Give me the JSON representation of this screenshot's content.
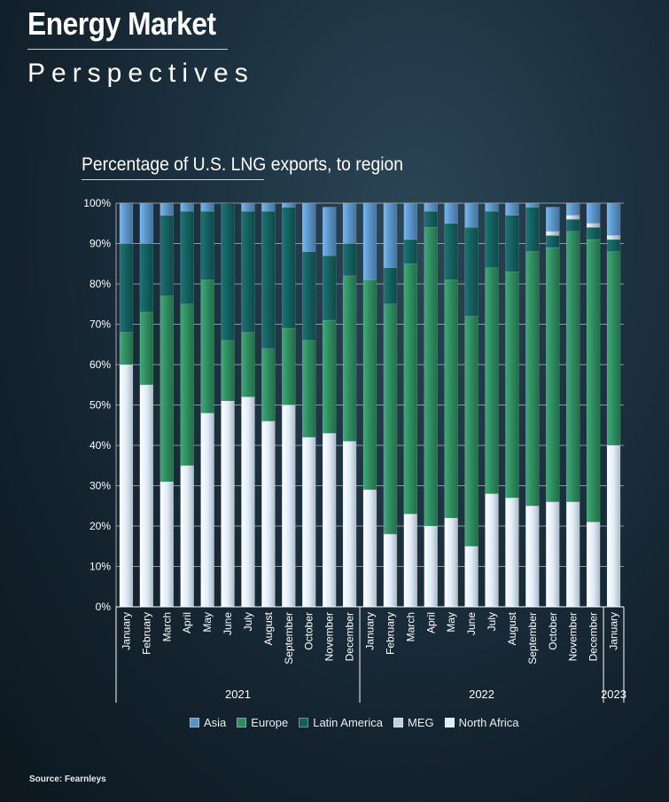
{
  "header": {
    "title": "Energy Market",
    "subtitle": "Perspectives"
  },
  "source": "Source: Fearnleys",
  "colors": {
    "North Africa": "#dfeefa",
    "Europe": "#2f8a5e",
    "Latin America": "#155e5e",
    "MEG": "#c6cfdc",
    "Asia": "#5a92c4",
    "grid": "#c8d2d9",
    "text": "#ffffff"
  },
  "chart_data": {
    "type": "bar",
    "stacked": true,
    "title": "Percentage of U.S. LNG exports, to region",
    "xlabel": "",
    "ylabel": "",
    "ylim": [
      0,
      100
    ],
    "yticks": [
      "0%",
      "10%",
      "20%",
      "30%",
      "40%",
      "50%",
      "60%",
      "70%",
      "80%",
      "90%",
      "100%"
    ],
    "grid": true,
    "legend_position": "bottom",
    "categories": [
      "January",
      "February",
      "March",
      "April",
      "May",
      "June",
      "July",
      "August",
      "September",
      "October",
      "November",
      "December",
      "January",
      "February",
      "March",
      "April",
      "May",
      "June",
      "July",
      "August",
      "September",
      "October",
      "November",
      "December",
      "January"
    ],
    "year_groups": [
      {
        "label": "2021",
        "start": 0,
        "count": 12
      },
      {
        "label": "2022",
        "start": 12,
        "count": 12
      },
      {
        "label": "2023",
        "start": 24,
        "count": 1
      }
    ],
    "legend": [
      "Asia",
      "Europe",
      "Latin America",
      "MEG",
      "North Africa"
    ],
    "stack_order": [
      "North Africa",
      "Europe",
      "Latin America",
      "MEG",
      "Asia"
    ],
    "series": [
      {
        "name": "North Africa",
        "values": [
          60,
          55,
          31,
          35,
          48,
          51,
          52,
          46,
          50,
          42,
          43,
          41,
          29,
          18,
          23,
          20,
          22,
          15,
          28,
          27,
          25,
          26,
          26,
          21,
          40
        ]
      },
      {
        "name": "Europe",
        "values": [
          8,
          18,
          46,
          40,
          33,
          15,
          16,
          18,
          19,
          24,
          28,
          41,
          52,
          57,
          62,
          74,
          59,
          57,
          56,
          56,
          63,
          63,
          67,
          70,
          48
        ]
      },
      {
        "name": "Latin America",
        "values": [
          22,
          17,
          20,
          23,
          17,
          34,
          30,
          34,
          30,
          22,
          16,
          8,
          0,
          9,
          6,
          4,
          14,
          22,
          14,
          14,
          11,
          3,
          3,
          3,
          3
        ]
      },
      {
        "name": "MEG",
        "values": [
          0,
          0,
          0,
          0,
          0,
          0,
          0,
          0,
          0,
          0,
          0,
          0,
          0,
          0,
          0,
          0,
          0,
          0,
          0,
          0,
          0,
          1,
          1,
          1,
          1
        ]
      },
      {
        "name": "Asia",
        "values": [
          10,
          10,
          3,
          2,
          2,
          0,
          2,
          2,
          1,
          12,
          12,
          10,
          19,
          16,
          9,
          2,
          5,
          6,
          2,
          3,
          1,
          6,
          3,
          5,
          8
        ]
      }
    ]
  }
}
